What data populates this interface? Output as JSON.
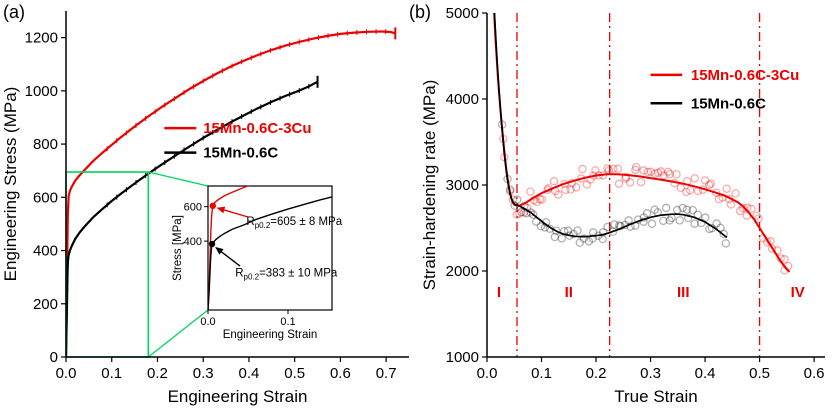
{
  "figure": {
    "panels": [
      {
        "label": "(a)"
      },
      {
        "label": "(b)"
      }
    ]
  },
  "colors": {
    "red": "#ed0000",
    "black": "#000000",
    "green": "#00d45a"
  },
  "chart_data": [
    {
      "id": "a",
      "type": "line",
      "title": "",
      "xlabel": "Engineering Strain",
      "ylabel": "Engineering Stress (MPa)",
      "xlim": [
        0,
        0.75
      ],
      "ylim": [
        0,
        1300
      ],
      "xticks": [
        0.0,
        0.1,
        0.2,
        0.3,
        0.4,
        0.5,
        0.6,
        0.7
      ],
      "yticks": [
        0,
        200,
        400,
        600,
        800,
        1000,
        1200
      ],
      "grid": false,
      "series": [
        {
          "name": "15Mn-0.6C-3Cu",
          "color": "red",
          "width": 2.2,
          "serrated": true,
          "end_tick": true,
          "points": [
            [
              0,
              0
            ],
            [
              0.002,
              250
            ],
            [
              0.003,
              420
            ],
            [
              0.004,
              530
            ],
            [
              0.005,
              578
            ],
            [
              0.006,
              605
            ],
            [
              0.008,
              622
            ],
            [
              0.012,
              638
            ],
            [
              0.02,
              662
            ],
            [
              0.03,
              683
            ],
            [
              0.04,
              702
            ],
            [
              0.06,
              737
            ],
            [
              0.08,
              768
            ],
            [
              0.1,
              797
            ],
            [
              0.12,
              826
            ],
            [
              0.15,
              866
            ],
            [
              0.18,
              904
            ],
            [
              0.21,
              940
            ],
            [
              0.24,
              974
            ],
            [
              0.27,
              1007
            ],
            [
              0.3,
              1037
            ],
            [
              0.33,
              1065
            ],
            [
              0.36,
              1091
            ],
            [
              0.39,
              1114
            ],
            [
              0.42,
              1135
            ],
            [
              0.45,
              1154
            ],
            [
              0.48,
              1170
            ],
            [
              0.51,
              1184
            ],
            [
              0.54,
              1196
            ],
            [
              0.57,
              1206
            ],
            [
              0.6,
              1214
            ],
            [
              0.63,
              1219
            ],
            [
              0.66,
              1222
            ],
            [
              0.69,
              1223
            ],
            [
              0.71,
              1221
            ],
            [
              0.72,
              1216
            ]
          ]
        },
        {
          "name": "15Mn-0.6C",
          "color": "black",
          "width": 2.2,
          "serrated": true,
          "end_tick": true,
          "points": [
            [
              0,
              0
            ],
            [
              0.002,
              180
            ],
            [
              0.003,
              290
            ],
            [
              0.004,
              350
            ],
            [
              0.005,
              375
            ],
            [
              0.006,
              383
            ],
            [
              0.008,
              397
            ],
            [
              0.012,
              415
            ],
            [
              0.02,
              443
            ],
            [
              0.03,
              468
            ],
            [
              0.04,
              489
            ],
            [
              0.06,
              526
            ],
            [
              0.08,
              557
            ],
            [
              0.1,
              586
            ],
            [
              0.12,
              613
            ],
            [
              0.15,
              652
            ],
            [
              0.18,
              689
            ],
            [
              0.21,
              724
            ],
            [
              0.24,
              758
            ],
            [
              0.27,
              791
            ],
            [
              0.3,
              823
            ],
            [
              0.33,
              853
            ],
            [
              0.36,
              882
            ],
            [
              0.39,
              909
            ],
            [
              0.42,
              935
            ],
            [
              0.45,
              959
            ],
            [
              0.48,
              981
            ],
            [
              0.51,
              1001
            ],
            [
              0.53,
              1016
            ],
            [
              0.55,
              1034
            ]
          ]
        }
      ],
      "legend": {
        "line_x": [
          0.215,
          0.285
        ],
        "items": [
          {
            "label": "15Mn-0.6C-3Cu",
            "color": "red",
            "x": 0.3,
            "y": 860
          },
          {
            "label": "15Mn-0.6C",
            "color": "black",
            "x": 0.3,
            "y": 768
          }
        ]
      },
      "zoom_box": {
        "x0": 0,
        "y0": 0,
        "x1": 0.18,
        "y1": 695,
        "color": "green"
      },
      "inset": {
        "xlabel": "Engineering Strain",
        "ylabel": "Stress [MPa]",
        "xlim": [
          0,
          0.155
        ],
        "ylim": [
          0,
          720
        ],
        "xticks": [
          0.0,
          0.1
        ],
        "yticks": [
          400,
          600
        ],
        "series": [
          {
            "color": "red",
            "points": [
              [
                0,
                0
              ],
              [
                0.0015,
                150
              ],
              [
                0.0025,
                300
              ],
              [
                0.0035,
                450
              ],
              [
                0.0045,
                545
              ],
              [
                0.0055,
                592
              ],
              [
                0.006,
                605
              ],
              [
                0.008,
                622
              ],
              [
                0.012,
                638
              ],
              [
                0.02,
                662
              ],
              [
                0.03,
                683
              ],
              [
                0.045,
                712
              ],
              [
                0.06,
                737
              ]
            ]
          },
          {
            "color": "black",
            "points": [
              [
                0,
                0
              ],
              [
                0.0015,
                110
              ],
              [
                0.0025,
                220
              ],
              [
                0.0035,
                315
              ],
              [
                0.0045,
                365
              ],
              [
                0.005,
                383
              ],
              [
                0.007,
                395
              ],
              [
                0.01,
                410
              ],
              [
                0.015,
                428
              ],
              [
                0.02,
                443
              ],
              [
                0.03,
                468
              ],
              [
                0.045,
                494
              ],
              [
                0.06,
                526
              ],
              [
                0.08,
                557
              ],
              [
                0.1,
                586
              ],
              [
                0.12,
                613
              ],
              [
                0.14,
                639
              ],
              [
                0.155,
                657
              ]
            ]
          }
        ],
        "annotations": [
          {
            "color": "red",
            "dot": [
              0.006,
              605
            ],
            "arrow_from": [
              0.05,
              540
            ],
            "arrow_to": [
              0.012,
              592
            ],
            "text_prefix": "R",
            "text_sub": "p0.2",
            "text_rest": "=605 ± 8 MPa",
            "tx": 0.048,
            "ty": 495
          },
          {
            "color": "black",
            "dot": [
              0.005,
              383
            ],
            "arrow_from": [
              0.04,
              255
            ],
            "arrow_to": [
              0.01,
              362
            ],
            "text_prefix": "R",
            "text_sub": "p0.2",
            "text_rest": "=383 ± 10 MPa",
            "tx": 0.034,
            "ty": 195
          }
        ]
      }
    },
    {
      "id": "b",
      "type": "scatter",
      "title": "",
      "xlabel": "True Strain",
      "ylabel": "Strain-hardening rate (MPa)",
      "xlim": [
        0,
        0.62
      ],
      "ylim": [
        1000,
        5000
      ],
      "xticks": [
        0.0,
        0.1,
        0.2,
        0.3,
        0.4,
        0.5,
        0.6
      ],
      "yticks": [
        1000,
        2000,
        3000,
        4000,
        5000
      ],
      "grid": false,
      "series": [
        {
          "name": "15Mn-0.6C-3Cu",
          "color": "red",
          "width": 2,
          "scatter": true,
          "scatter_range": [
            0.028,
            0.555
          ],
          "points": [
            [
              0.01,
              5400
            ],
            [
              0.015,
              4750
            ],
            [
              0.02,
              4250
            ],
            [
              0.025,
              3850
            ],
            [
              0.03,
              3500
            ],
            [
              0.035,
              3200
            ],
            [
              0.04,
              2980
            ],
            [
              0.045,
              2840
            ],
            [
              0.05,
              2770
            ],
            [
              0.06,
              2760
            ],
            [
              0.07,
              2790
            ],
            [
              0.08,
              2830
            ],
            [
              0.09,
              2870
            ],
            [
              0.1,
              2905
            ],
            [
              0.12,
              2960
            ],
            [
              0.14,
              3010
            ],
            [
              0.16,
              3050
            ],
            [
              0.18,
              3085
            ],
            [
              0.2,
              3110
            ],
            [
              0.22,
              3125
            ],
            [
              0.24,
              3125
            ],
            [
              0.26,
              3115
            ],
            [
              0.28,
              3100
            ],
            [
              0.3,
              3080
            ],
            [
              0.32,
              3060
            ],
            [
              0.34,
              3040
            ],
            [
              0.36,
              3015
            ],
            [
              0.38,
              2985
            ],
            [
              0.4,
              2950
            ],
            [
              0.42,
              2910
            ],
            [
              0.44,
              2865
            ],
            [
              0.46,
              2800
            ],
            [
              0.47,
              2750
            ],
            [
              0.48,
              2680
            ],
            [
              0.49,
              2600
            ],
            [
              0.5,
              2500
            ],
            [
              0.51,
              2400
            ],
            [
              0.52,
              2300
            ],
            [
              0.53,
              2200
            ],
            [
              0.54,
              2100
            ],
            [
              0.55,
              2020
            ],
            [
              0.555,
              1990
            ]
          ]
        },
        {
          "name": "15Mn-0.6C",
          "color": "black",
          "width": 1.7,
          "scatter": true,
          "scatter_range": [
            0.03,
            0.44
          ],
          "points": [
            [
              0.012,
              5200
            ],
            [
              0.018,
              4500
            ],
            [
              0.022,
              4100
            ],
            [
              0.027,
              3700
            ],
            [
              0.032,
              3350
            ],
            [
              0.037,
              3080
            ],
            [
              0.042,
              2900
            ],
            [
              0.047,
              2800
            ],
            [
              0.052,
              2770
            ],
            [
              0.06,
              2755
            ],
            [
              0.07,
              2720
            ],
            [
              0.08,
              2680
            ],
            [
              0.09,
              2630
            ],
            [
              0.1,
              2580
            ],
            [
              0.11,
              2530
            ],
            [
              0.12,
              2490
            ],
            [
              0.13,
              2455
            ],
            [
              0.14,
              2430
            ],
            [
              0.15,
              2415
            ],
            [
              0.16,
              2405
            ],
            [
              0.17,
              2400
            ],
            [
              0.18,
              2400
            ],
            [
              0.19,
              2405
            ],
            [
              0.2,
              2410
            ],
            [
              0.21,
              2420
            ],
            [
              0.22,
              2435
            ],
            [
              0.24,
              2480
            ],
            [
              0.26,
              2535
            ],
            [
              0.28,
              2585
            ],
            [
              0.3,
              2625
            ],
            [
              0.32,
              2650
            ],
            [
              0.34,
              2660
            ],
            [
              0.35,
              2660
            ],
            [
              0.36,
              2655
            ],
            [
              0.38,
              2625
            ],
            [
              0.4,
              2570
            ],
            [
              0.42,
              2490
            ],
            [
              0.44,
              2390
            ]
          ]
        }
      ],
      "legend": {
        "line_x": [
          0.3,
          0.358
        ],
        "items": [
          {
            "label": "15Mn-0.6C-3Cu",
            "color": "red",
            "x": 0.374,
            "y": 4280
          },
          {
            "label": "15Mn-0.6C",
            "color": "black",
            "x": 0.374,
            "y": 3950
          }
        ]
      },
      "vlines": {
        "xs": [
          0.055,
          0.225,
          0.5
        ],
        "color": "red"
      },
      "region_labels": [
        {
          "label": "I",
          "x": 0.022,
          "y": 1700
        },
        {
          "label": "II",
          "x": 0.15,
          "y": 1700
        },
        {
          "label": "III",
          "x": 0.36,
          "y": 1700
        },
        {
          "label": "IV",
          "x": 0.57,
          "y": 1700
        }
      ]
    }
  ]
}
